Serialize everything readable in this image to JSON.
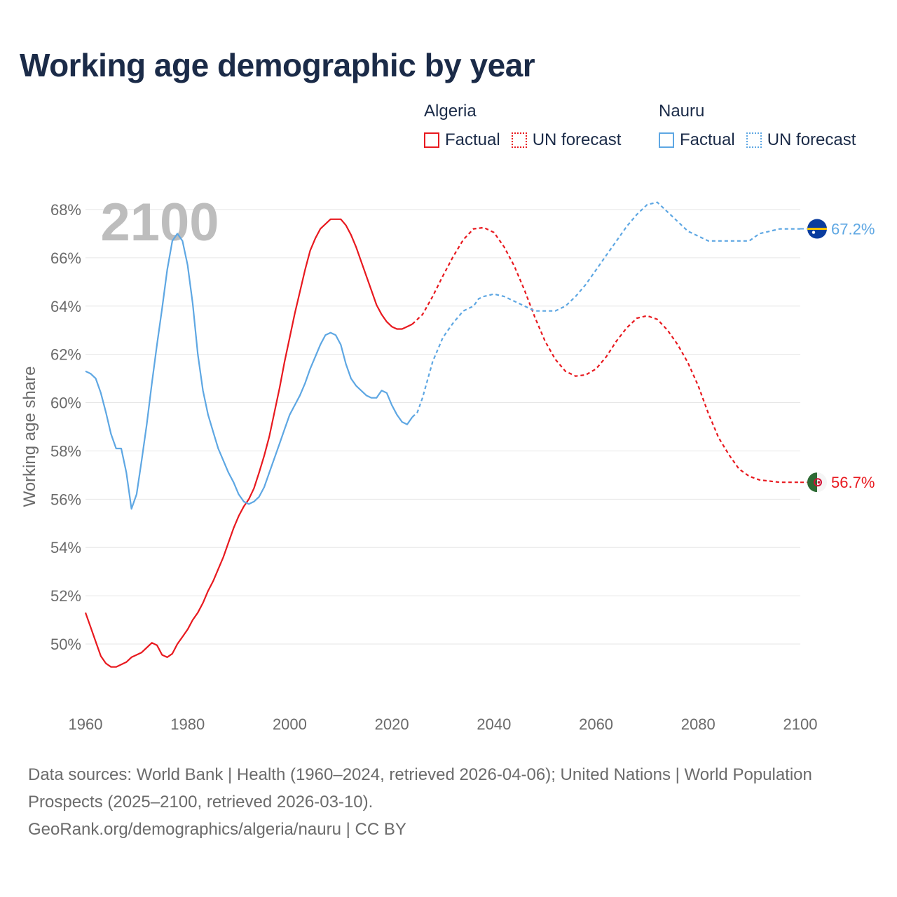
{
  "title": "Working age demographic by year",
  "legend": {
    "groups": [
      {
        "name": "Algeria",
        "factual": "Factual",
        "forecast": "UN forecast",
        "color": "#e8191f"
      },
      {
        "name": "Nauru",
        "factual": "Factual",
        "forecast": "UN forecast",
        "color": "#5ea7e3"
      }
    ]
  },
  "footer": {
    "sources": "Data sources: World Bank | Health (1960–2024, retrieved 2026-04-06); United Nations | World Population Prospects (2025–2100, retrieved 2026-03-10).",
    "attribution": "GeoRank.org/demographics/algeria/nauru | CC BY"
  },
  "flags": {
    "algeria": "algeria-flag-icon",
    "nauru": "nauru-flag-icon"
  },
  "chart_data": {
    "type": "line",
    "title": "Working age demographic by year",
    "ylabel": "Working age share",
    "xlabel": "",
    "year_label": "2100",
    "xlim": [
      1960,
      2100
    ],
    "ylim": [
      48,
      69
    ],
    "y_ticks": [
      50,
      52,
      54,
      56,
      58,
      60,
      62,
      64,
      66,
      68
    ],
    "y_tick_labels": [
      "50%",
      "52%",
      "54%",
      "56%",
      "58%",
      "60%",
      "62%",
      "64%",
      "66%",
      "68%"
    ],
    "x_ticks": [
      1960,
      1980,
      2000,
      2020,
      2040,
      2060,
      2080,
      2100
    ],
    "x_tick_labels": [
      "1960",
      "1980",
      "2000",
      "2020",
      "2040",
      "2060",
      "2080",
      "2100"
    ],
    "grid": true,
    "series": [
      {
        "name": "Algeria",
        "color": "#e8191f",
        "end_label": "56.7%",
        "factual": {
          "x": [
            1960,
            1961,
            1962,
            1963,
            1964,
            1965,
            1966,
            1967,
            1968,
            1969,
            1970,
            1971,
            1972,
            1973,
            1974,
            1975,
            1976,
            1977,
            1978,
            1979,
            1980,
            1981,
            1982,
            1983,
            1984,
            1985,
            1986,
            1987,
            1988,
            1989,
            1990,
            1991,
            1992,
            1993,
            1994,
            1995,
            1996,
            1997,
            1998,
            1999,
            2000,
            2001,
            2002,
            2003,
            2004,
            2005,
            2006,
            2007,
            2008,
            2009,
            2010,
            2011,
            2012,
            2013,
            2014,
            2015,
            2016,
            2017,
            2018,
            2019,
            2020,
            2021,
            2022,
            2023,
            2024
          ],
          "y": [
            51.3,
            50.7,
            50.1,
            49.5,
            49.2,
            49.05,
            49.05,
            49.15,
            49.25,
            49.45,
            49.55,
            49.65,
            49.85,
            50.05,
            49.95,
            49.55,
            49.45,
            49.6,
            50.0,
            50.3,
            50.6,
            51.0,
            51.3,
            51.7,
            52.2,
            52.6,
            53.1,
            53.6,
            54.2,
            54.8,
            55.3,
            55.7,
            56.0,
            56.45,
            57.1,
            57.8,
            58.6,
            59.6,
            60.6,
            61.7,
            62.7,
            63.7,
            64.6,
            65.5,
            66.3,
            66.8,
            67.2,
            67.4,
            67.6,
            67.6,
            67.6,
            67.35,
            66.95,
            66.45,
            65.85,
            65.25,
            64.65,
            64.05,
            63.65,
            63.35,
            63.15,
            63.05,
            63.05,
            63.15,
            63.25
          ]
        },
        "forecast": {
          "x": [
            2024,
            2026,
            2028,
            2030,
            2032,
            2034,
            2036,
            2038,
            2040,
            2042,
            2044,
            2046,
            2048,
            2050,
            2052,
            2054,
            2056,
            2058,
            2060,
            2062,
            2064,
            2066,
            2068,
            2070,
            2072,
            2074,
            2076,
            2078,
            2080,
            2082,
            2084,
            2086,
            2088,
            2090,
            2092,
            2094,
            2096,
            2098,
            2100
          ],
          "y": [
            63.25,
            63.65,
            64.4,
            65.25,
            66.05,
            66.75,
            67.2,
            67.25,
            67.05,
            66.45,
            65.65,
            64.65,
            63.55,
            62.55,
            61.8,
            61.3,
            61.1,
            61.15,
            61.4,
            61.9,
            62.55,
            63.1,
            63.5,
            63.6,
            63.45,
            63.0,
            62.4,
            61.65,
            60.7,
            59.55,
            58.55,
            57.85,
            57.25,
            56.95,
            56.8,
            56.75,
            56.7,
            56.7,
            56.7
          ]
        }
      },
      {
        "name": "Nauru",
        "color": "#5ea7e3",
        "end_label": "67.2%",
        "factual": {
          "x": [
            1960,
            1961,
            1962,
            1963,
            1964,
            1965,
            1966,
            1967,
            1968,
            1969,
            1970,
            1971,
            1972,
            1973,
            1974,
            1975,
            1976,
            1977,
            1978,
            1979,
            1980,
            1981,
            1982,
            1983,
            1984,
            1985,
            1986,
            1987,
            1988,
            1989,
            1990,
            1991,
            1992,
            1993,
            1994,
            1995,
            1996,
            1997,
            1998,
            1999,
            2000,
            2001,
            2002,
            2003,
            2004,
            2005,
            2006,
            2007,
            2008,
            2009,
            2010,
            2011,
            2012,
            2013,
            2014,
            2015,
            2016,
            2017,
            2018,
            2019,
            2020,
            2021,
            2022,
            2023,
            2024
          ],
          "y": [
            61.3,
            61.2,
            61.0,
            60.4,
            59.6,
            58.7,
            58.1,
            58.1,
            57.1,
            55.6,
            56.2,
            57.6,
            59.1,
            60.8,
            62.4,
            63.9,
            65.5,
            66.7,
            67.0,
            66.7,
            65.7,
            64.1,
            62.0,
            60.5,
            59.5,
            58.8,
            58.1,
            57.6,
            57.1,
            56.7,
            56.2,
            55.9,
            55.8,
            55.9,
            56.1,
            56.5,
            57.1,
            57.7,
            58.3,
            58.9,
            59.5,
            59.9,
            60.3,
            60.8,
            61.4,
            61.9,
            62.4,
            62.8,
            62.9,
            62.8,
            62.4,
            61.6,
            61.0,
            60.7,
            60.5,
            60.3,
            60.2,
            60.2,
            60.5,
            60.4,
            59.9,
            59.5,
            59.2,
            59.1,
            59.4
          ]
        },
        "forecast": {
          "x": [
            2024,
            2025,
            2026,
            2028,
            2030,
            2032,
            2034,
            2036,
            2037,
            2038,
            2040,
            2042,
            2044,
            2046,
            2048,
            2050,
            2052,
            2054,
            2056,
            2058,
            2060,
            2062,
            2064,
            2066,
            2068,
            2070,
            2072,
            2074,
            2076,
            2078,
            2080,
            2082,
            2084,
            2086,
            2088,
            2090,
            2092,
            2094,
            2096,
            2098,
            2100
          ],
          "y": [
            59.4,
            59.6,
            60.2,
            61.7,
            62.7,
            63.3,
            63.8,
            64.0,
            64.3,
            64.4,
            64.5,
            64.4,
            64.2,
            64.0,
            63.8,
            63.8,
            63.8,
            64.0,
            64.4,
            64.9,
            65.5,
            66.1,
            66.7,
            67.3,
            67.8,
            68.2,
            68.3,
            67.9,
            67.5,
            67.1,
            66.9,
            66.7,
            66.7,
            66.7,
            66.7,
            66.7,
            67.0,
            67.1,
            67.2,
            67.2,
            67.2
          ]
        }
      }
    ]
  }
}
